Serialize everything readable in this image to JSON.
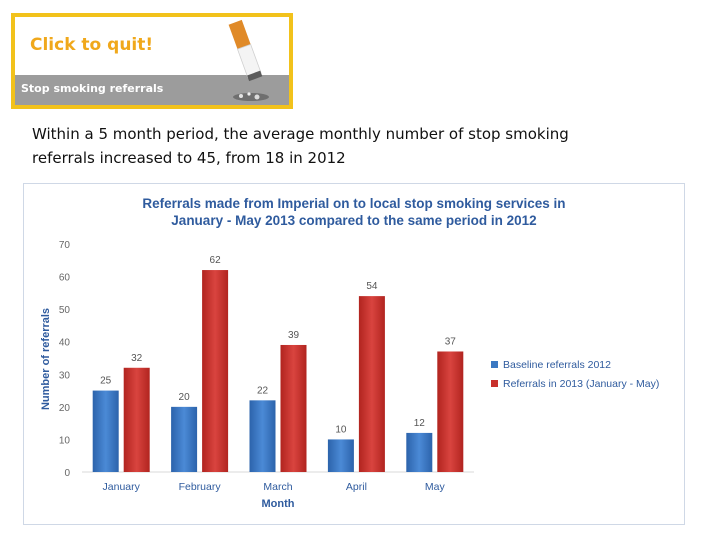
{
  "banner": {
    "title": "Click to quit!",
    "subtitle": "Stop smoking referrals"
  },
  "headline": {
    "line1": "Within a 5 month period, the average monthly number of stop smoking",
    "line2": "referrals increased to 45, from 18 in 2012"
  },
  "colors": {
    "banner_border": "#f2c21b",
    "banner_title": "#f0a81b",
    "series_baseline": "#3a78c2",
    "series_2013": "#c8302c",
    "chart_title": "#2f5b9e"
  },
  "chart_data": {
    "type": "bar",
    "title_line1": "Referrals made from Imperial on to local stop smoking services in",
    "title_line2": "January - May 2013 compared to the same period in 2012",
    "xlabel": "Month",
    "ylabel": "Number of referrals",
    "ylim": [
      0,
      70
    ],
    "yticks": [
      0,
      10,
      20,
      30,
      40,
      50,
      60,
      70
    ],
    "categories": [
      "January",
      "February",
      "March",
      "April",
      "May"
    ],
    "series": [
      {
        "name": "Baseline referrals 2012",
        "values": [
          25,
          20,
          22,
          10,
          12
        ]
      },
      {
        "name": "Referrals in 2013 (January - May)",
        "values": [
          32,
          62,
          39,
          54,
          37
        ]
      }
    ],
    "legend_position": "right",
    "grid": false,
    "data_labels": true
  }
}
